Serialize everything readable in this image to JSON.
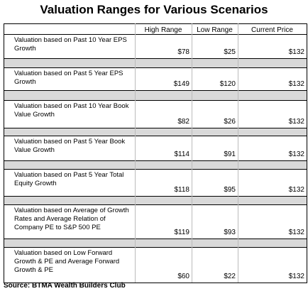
{
  "title": "Valuation Ranges for Various Scenarios",
  "table": {
    "header": [
      "High Range",
      "Low Range",
      "Current Price"
    ],
    "rows": [
      [
        "Valuation based on Past 10 Year EPS Growth",
        "$78",
        "$25",
        "$132"
      ],
      [
        "Valuation based on Past 5 Year EPS Growth",
        "$149",
        "$120",
        "$132"
      ],
      [
        "Valuation based on Past 10 Year Book Value Growth",
        "$82",
        "$26",
        "$132"
      ],
      [
        "Valuation based on Past 5 Year Book Value Growth",
        "$114",
        "$91",
        "$132"
      ],
      [
        "Valuation based on Past 5 Year Total Equity Growth",
        "$118",
        "$95",
        "$132"
      ],
      [
        "Valuation based on Average of Growth Rates and Average Relation of Company PE to S&P 500 PE",
        "$119",
        "$93",
        "$132"
      ],
      [
        "Valuation based on Low Forward Growth & PE and Average Forward Growth & PE",
        "$60",
        "$22",
        "$132"
      ]
    ]
  },
  "source": "Source: BTMA Wealth Builders Club"
}
